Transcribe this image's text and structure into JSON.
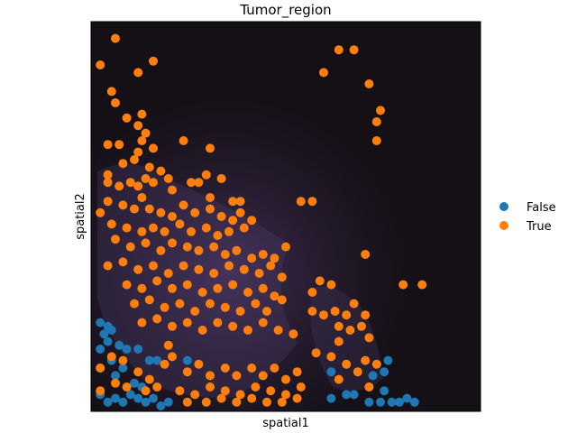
{
  "chart_data": {
    "type": "scatter",
    "title": "Tumor_region",
    "xlabel": "spatial1",
    "ylabel": "spatial2",
    "background": "tissue image (dark, fluorescence)",
    "grid": false,
    "ticks": "none",
    "legend": {
      "placement": "right",
      "entries": [
        {
          "label": "False",
          "color": "#1f77b4"
        },
        {
          "label": "True",
          "color": "#ff7f0e"
        }
      ]
    },
    "series": [
      {
        "name": "False",
        "color": "#1f77b4",
        "points": [
          [
            0.62,
            0.09
          ],
          [
            0.01,
            0.15
          ],
          [
            0.03,
            0.17
          ],
          [
            0.02,
            0.19
          ],
          [
            0.01,
            0.22
          ],
          [
            0.04,
            0.2
          ],
          [
            0.06,
            0.16
          ],
          [
            0.08,
            0.15
          ],
          [
            0.11,
            0.15
          ],
          [
            0.14,
            0.12
          ],
          [
            0.16,
            0.12
          ],
          [
            0.04,
            0.12
          ],
          [
            0.07,
            0.1
          ],
          [
            0.05,
            0.08
          ],
          [
            0.01,
            0.1
          ],
          [
            0.1,
            0.06
          ],
          [
            0.12,
            0.05
          ],
          [
            0.09,
            0.03
          ],
          [
            0.11,
            0.02
          ],
          [
            0.13,
            0.01
          ],
          [
            0.15,
            0.02
          ],
          [
            0.17,
            0.0
          ],
          [
            0.19,
            0.01
          ],
          [
            0.07,
            0.01
          ],
          [
            0.05,
            0.02
          ],
          [
            0.03,
            0.01
          ],
          [
            0.01,
            0.03
          ],
          [
            0.24,
            0.12
          ],
          [
            0.03,
            0.21
          ],
          [
            0.77,
            0.12
          ],
          [
            0.76,
            0.09
          ],
          [
            0.73,
            0.08
          ],
          [
            0.76,
            0.04
          ],
          [
            0.72,
            0.05
          ],
          [
            0.68,
            0.03
          ],
          [
            0.66,
            0.03
          ],
          [
            0.72,
            0.01
          ],
          [
            0.75,
            0.01
          ],
          [
            0.78,
            0.01
          ],
          [
            0.8,
            0.01
          ],
          [
            0.82,
            0.02
          ],
          [
            0.84,
            0.01
          ],
          [
            0.62,
            0.02
          ]
        ]
      },
      {
        "name": "True",
        "color": "#ff7f0e",
        "points": [
          [
            0.05,
            0.97
          ],
          [
            0.01,
            0.9
          ],
          [
            0.11,
            0.88
          ],
          [
            0.15,
            0.91
          ],
          [
            0.6,
            0.88
          ],
          [
            0.64,
            0.94
          ],
          [
            0.68,
            0.94
          ],
          [
            0.72,
            0.85
          ],
          [
            0.04,
            0.83
          ],
          [
            0.05,
            0.8
          ],
          [
            0.75,
            0.78
          ],
          [
            0.74,
            0.75
          ],
          [
            0.08,
            0.76
          ],
          [
            0.11,
            0.74
          ],
          [
            0.12,
            0.77
          ],
          [
            0.13,
            0.72
          ],
          [
            0.12,
            0.7
          ],
          [
            0.03,
            0.69
          ],
          [
            0.06,
            0.69
          ],
          [
            0.11,
            0.67
          ],
          [
            0.15,
            0.68
          ],
          [
            0.23,
            0.7
          ],
          [
            0.3,
            0.68
          ],
          [
            0.74,
            0.7
          ],
          [
            0.07,
            0.64
          ],
          [
            0.1,
            0.65
          ],
          [
            0.14,
            0.63
          ],
          [
            0.03,
            0.61
          ],
          [
            0.03,
            0.59
          ],
          [
            0.06,
            0.58
          ],
          [
            0.09,
            0.59
          ],
          [
            0.11,
            0.58
          ],
          [
            0.13,
            0.6
          ],
          [
            0.15,
            0.59
          ],
          [
            0.17,
            0.62
          ],
          [
            0.19,
            0.6
          ],
          [
            0.2,
            0.57
          ],
          [
            0.25,
            0.59
          ],
          [
            0.27,
            0.59
          ],
          [
            0.3,
            0.55
          ],
          [
            0.29,
            0.61
          ],
          [
            0.33,
            0.6
          ],
          [
            0.36,
            0.54
          ],
          [
            0.38,
            0.54
          ],
          [
            0.54,
            0.54
          ],
          [
            0.57,
            0.54
          ],
          [
            0.03,
            0.54
          ],
          [
            0.07,
            0.53
          ],
          [
            0.1,
            0.52
          ],
          [
            0.12,
            0.55
          ],
          [
            0.14,
            0.52
          ],
          [
            0.17,
            0.51
          ],
          [
            0.2,
            0.5
          ],
          [
            0.23,
            0.53
          ],
          [
            0.26,
            0.51
          ],
          [
            0.3,
            0.52
          ],
          [
            0.33,
            0.5
          ],
          [
            0.36,
            0.49
          ],
          [
            0.38,
            0.51
          ],
          [
            0.41,
            0.49
          ],
          [
            0.01,
            0.51
          ],
          [
            0.04,
            0.48
          ],
          [
            0.08,
            0.47
          ],
          [
            0.12,
            0.46
          ],
          [
            0.15,
            0.47
          ],
          [
            0.18,
            0.46
          ],
          [
            0.22,
            0.48
          ],
          [
            0.25,
            0.46
          ],
          [
            0.29,
            0.47
          ],
          [
            0.32,
            0.45
          ],
          [
            0.35,
            0.46
          ],
          [
            0.39,
            0.47
          ],
          [
            0.5,
            0.42
          ],
          [
            0.71,
            0.4
          ],
          [
            0.05,
            0.44
          ],
          [
            0.09,
            0.42
          ],
          [
            0.13,
            0.43
          ],
          [
            0.17,
            0.41
          ],
          [
            0.2,
            0.43
          ],
          [
            0.24,
            0.42
          ],
          [
            0.27,
            0.41
          ],
          [
            0.31,
            0.42
          ],
          [
            0.34,
            0.4
          ],
          [
            0.37,
            0.41
          ],
          [
            0.41,
            0.39
          ],
          [
            0.44,
            0.4
          ],
          [
            0.47,
            0.39
          ],
          [
            0.03,
            0.37
          ],
          [
            0.07,
            0.38
          ],
          [
            0.11,
            0.36
          ],
          [
            0.15,
            0.37
          ],
          [
            0.19,
            0.35
          ],
          [
            0.23,
            0.37
          ],
          [
            0.27,
            0.36
          ],
          [
            0.31,
            0.35
          ],
          [
            0.35,
            0.37
          ],
          [
            0.39,
            0.36
          ],
          [
            0.43,
            0.35
          ],
          [
            0.46,
            0.37
          ],
          [
            0.49,
            0.34
          ],
          [
            0.08,
            0.32
          ],
          [
            0.12,
            0.31
          ],
          [
            0.16,
            0.33
          ],
          [
            0.2,
            0.31
          ],
          [
            0.24,
            0.32
          ],
          [
            0.28,
            0.3
          ],
          [
            0.32,
            0.31
          ],
          [
            0.36,
            0.32
          ],
          [
            0.4,
            0.3
          ],
          [
            0.44,
            0.31
          ],
          [
            0.47,
            0.29
          ],
          [
            0.1,
            0.27
          ],
          [
            0.14,
            0.28
          ],
          [
            0.18,
            0.26
          ],
          [
            0.22,
            0.27
          ],
          [
            0.26,
            0.25
          ],
          [
            0.3,
            0.27
          ],
          [
            0.34,
            0.26
          ],
          [
            0.38,
            0.25
          ],
          [
            0.42,
            0.27
          ],
          [
            0.45,
            0.25
          ],
          [
            0.49,
            0.28
          ],
          [
            0.57,
            0.3
          ],
          [
            0.59,
            0.33
          ],
          [
            0.62,
            0.32
          ],
          [
            0.81,
            0.32
          ],
          [
            0.86,
            0.32
          ],
          [
            0.12,
            0.22
          ],
          [
            0.16,
            0.23
          ],
          [
            0.2,
            0.21
          ],
          [
            0.24,
            0.22
          ],
          [
            0.28,
            0.2
          ],
          [
            0.32,
            0.22
          ],
          [
            0.36,
            0.21
          ],
          [
            0.4,
            0.2
          ],
          [
            0.44,
            0.22
          ],
          [
            0.48,
            0.2
          ],
          [
            0.52,
            0.19
          ],
          [
            0.57,
            0.25
          ],
          [
            0.6,
            0.24
          ],
          [
            0.63,
            0.25
          ],
          [
            0.66,
            0.24
          ],
          [
            0.68,
            0.27
          ],
          [
            0.71,
            0.24
          ],
          [
            0.64,
            0.21
          ],
          [
            0.67,
            0.2
          ],
          [
            0.7,
            0.21
          ],
          [
            0.72,
            0.18
          ],
          [
            0.64,
            0.17
          ],
          [
            0.01,
            0.1
          ],
          [
            0.04,
            0.13
          ],
          [
            0.07,
            0.12
          ],
          [
            0.11,
            0.09
          ],
          [
            0.14,
            0.07
          ],
          [
            0.18,
            0.11
          ],
          [
            0.2,
            0.13
          ],
          [
            0.19,
            0.16
          ],
          [
            0.24,
            0.09
          ],
          [
            0.27,
            0.11
          ],
          [
            0.3,
            0.08
          ],
          [
            0.34,
            0.1
          ],
          [
            0.37,
            0.08
          ],
          [
            0.41,
            0.1
          ],
          [
            0.44,
            0.08
          ],
          [
            0.47,
            0.1
          ],
          [
            0.5,
            0.07
          ],
          [
            0.53,
            0.09
          ],
          [
            0.58,
            0.14
          ],
          [
            0.62,
            0.13
          ],
          [
            0.66,
            0.11
          ],
          [
            0.69,
            0.09
          ],
          [
            0.71,
            0.12
          ],
          [
            0.74,
            0.11
          ],
          [
            0.01,
            0.04
          ],
          [
            0.05,
            0.06
          ],
          [
            0.08,
            0.05
          ],
          [
            0.13,
            0.04
          ],
          [
            0.16,
            0.05
          ],
          [
            0.22,
            0.04
          ],
          [
            0.26,
            0.03
          ],
          [
            0.3,
            0.05
          ],
          [
            0.34,
            0.04
          ],
          [
            0.38,
            0.03
          ],
          [
            0.42,
            0.05
          ],
          [
            0.46,
            0.04
          ],
          [
            0.5,
            0.03
          ],
          [
            0.54,
            0.05
          ],
          [
            0.64,
            0.07
          ],
          [
            0.72,
            0.05
          ],
          [
            0.24,
            0.01
          ],
          [
            0.29,
            0.01
          ],
          [
            0.33,
            0.02
          ],
          [
            0.37,
            0.01
          ],
          [
            0.41,
            0.02
          ],
          [
            0.45,
            0.01
          ],
          [
            0.49,
            0.01
          ],
          [
            0.53,
            0.02
          ]
        ]
      }
    ]
  }
}
